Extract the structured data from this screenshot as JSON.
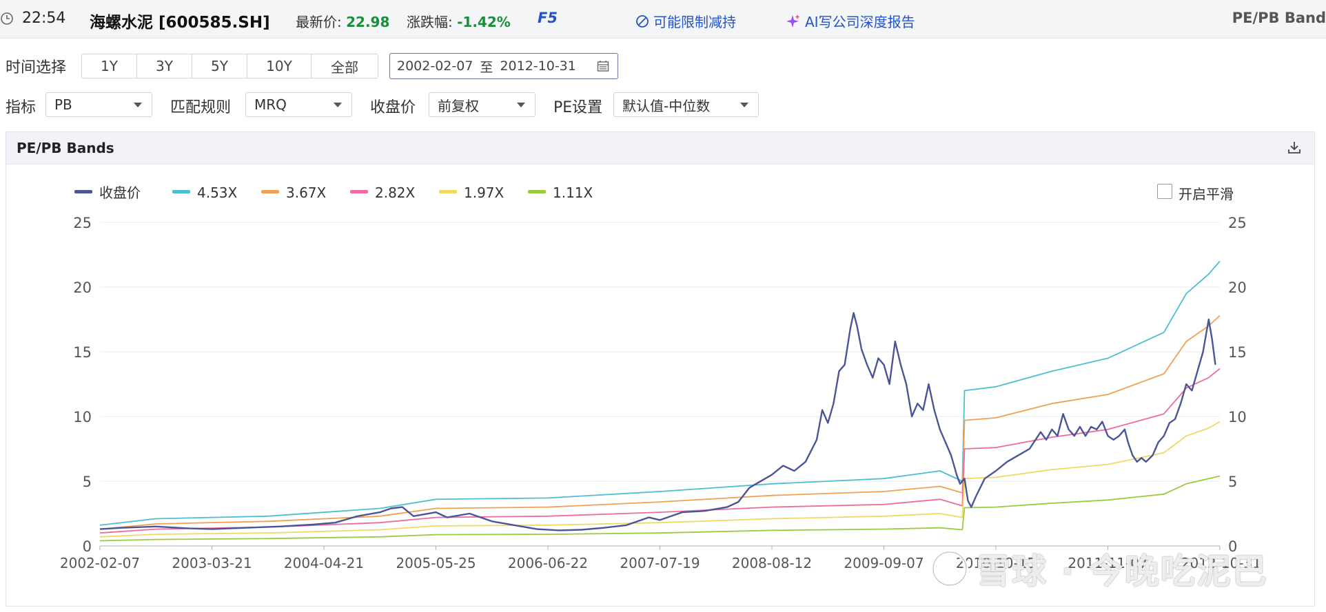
{
  "header": {
    "time": "22:54",
    "stock": "海螺水泥 [600585.SH]",
    "latest_price_label": "最新价:",
    "latest_price": "22.98",
    "change_label": "涨跌幅:",
    "change": "-1.42%",
    "f5": "F5",
    "link_reduce": "可能限制减持",
    "link_ai": "AI写公司深度报告",
    "right_title": "PE/PB Band"
  },
  "filters": {
    "time_label": "时间选择",
    "time_options": [
      "1Y",
      "3Y",
      "5Y",
      "10Y",
      "全部"
    ],
    "date_start": "2002-02-07",
    "date_sep": "至",
    "date_end": "2012-10-31",
    "indicator_label": "指标",
    "indicator_value": "PB",
    "match_label": "匹配规则",
    "match_value": "MRQ",
    "close_label": "收盘价",
    "close_value": "前复权",
    "pe_label": "PE设置",
    "pe_value": "默认值-中位数"
  },
  "panel": {
    "title": "PE/PB Bands",
    "smooth_label": "开启平滑"
  },
  "watermark": "雪球 · 今晚吃泥巴",
  "colors": {
    "close": "#4a5596",
    "b453": "#4bbfd1",
    "b367": "#f0a050",
    "b282": "#ee6aa0",
    "b197": "#f1d860",
    "b111": "#9acb3c",
    "accent": "#2452c8",
    "up_green": "#1a8f3a"
  },
  "chart_data": {
    "type": "line",
    "title": "",
    "x_ticks": [
      "2002-02-07",
      "2003-03-21",
      "2004-04-21",
      "2005-05-25",
      "2006-06-22",
      "2007-07-19",
      "2008-08-12",
      "2009-09-07",
      "2010-10-15",
      "2011-11-07",
      "2012-10-31"
    ],
    "ylim": [
      0,
      25
    ],
    "y_ticks": [
      0,
      5,
      10,
      15,
      20,
      25
    ],
    "legend_position": "top-left",
    "series": [
      {
        "name": "收盘价",
        "color": "#4a5596",
        "points": [
          [
            0,
            1.3
          ],
          [
            0.02,
            1.4
          ],
          [
            0.05,
            1.5
          ],
          [
            0.08,
            1.35
          ],
          [
            0.1,
            1.3
          ],
          [
            0.13,
            1.4
          ],
          [
            0.16,
            1.5
          ],
          [
            0.19,
            1.65
          ],
          [
            0.21,
            1.8
          ],
          [
            0.23,
            2.3
          ],
          [
            0.25,
            2.6
          ],
          [
            0.26,
            2.9
          ],
          [
            0.27,
            3.0
          ],
          [
            0.28,
            2.3
          ],
          [
            0.3,
            2.6
          ],
          [
            0.31,
            2.2
          ],
          [
            0.33,
            2.5
          ],
          [
            0.35,
            1.9
          ],
          [
            0.37,
            1.6
          ],
          [
            0.39,
            1.3
          ],
          [
            0.41,
            1.2
          ],
          [
            0.43,
            1.25
          ],
          [
            0.45,
            1.4
          ],
          [
            0.47,
            1.6
          ],
          [
            0.49,
            2.2
          ],
          [
            0.5,
            2.0
          ],
          [
            0.52,
            2.6
          ],
          [
            0.54,
            2.7
          ],
          [
            0.56,
            3.0
          ],
          [
            0.57,
            3.4
          ],
          [
            0.58,
            4.5
          ],
          [
            0.6,
            5.5
          ],
          [
            0.61,
            6.2
          ],
          [
            0.62,
            5.8
          ],
          [
            0.63,
            6.5
          ],
          [
            0.64,
            8.2
          ],
          [
            0.645,
            10.5
          ],
          [
            0.65,
            9.5
          ],
          [
            0.655,
            11.0
          ],
          [
            0.66,
            13.5
          ],
          [
            0.665,
            14.0
          ],
          [
            0.67,
            16.8
          ],
          [
            0.673,
            18.0
          ],
          [
            0.676,
            17.0
          ],
          [
            0.68,
            15.2
          ],
          [
            0.685,
            14.0
          ],
          [
            0.69,
            13.0
          ],
          [
            0.695,
            14.5
          ],
          [
            0.7,
            14.0
          ],
          [
            0.705,
            12.5
          ],
          [
            0.71,
            15.8
          ],
          [
            0.715,
            14.0
          ],
          [
            0.72,
            12.5
          ],
          [
            0.725,
            10.0
          ],
          [
            0.73,
            11.0
          ],
          [
            0.735,
            10.5
          ],
          [
            0.74,
            12.5
          ],
          [
            0.745,
            10.5
          ],
          [
            0.75,
            9.0
          ],
          [
            0.755,
            8.0
          ],
          [
            0.76,
            7.0
          ],
          [
            0.765,
            5.5
          ],
          [
            0.768,
            4.8
          ],
          [
            0.772,
            5.2
          ],
          [
            0.775,
            3.5
          ],
          [
            0.778,
            3.0
          ],
          [
            0.782,
            3.8
          ],
          [
            0.786,
            4.5
          ],
          [
            0.79,
            5.2
          ],
          [
            0.8,
            5.8
          ],
          [
            0.81,
            6.5
          ],
          [
            0.82,
            7.0
          ],
          [
            0.83,
            7.5
          ],
          [
            0.84,
            8.8
          ],
          [
            0.845,
            8.2
          ],
          [
            0.85,
            9.0
          ],
          [
            0.855,
            8.5
          ],
          [
            0.86,
            10.2
          ],
          [
            0.865,
            9.0
          ],
          [
            0.87,
            8.5
          ],
          [
            0.875,
            9.2
          ],
          [
            0.88,
            8.5
          ],
          [
            0.885,
            9.2
          ],
          [
            0.89,
            9.0
          ],
          [
            0.895,
            9.6
          ],
          [
            0.9,
            8.5
          ],
          [
            0.905,
            8.2
          ],
          [
            0.91,
            8.5
          ],
          [
            0.915,
            9.0
          ],
          [
            0.918,
            8.0
          ],
          [
            0.922,
            7.0
          ],
          [
            0.926,
            6.5
          ],
          [
            0.93,
            6.8
          ],
          [
            0.934,
            6.5
          ],
          [
            0.94,
            7.0
          ],
          [
            0.945,
            8.0
          ],
          [
            0.95,
            8.5
          ],
          [
            0.955,
            9.5
          ],
          [
            0.96,
            9.8
          ],
          [
            0.965,
            11.0
          ],
          [
            0.97,
            12.5
          ],
          [
            0.975,
            12.0
          ],
          [
            0.98,
            13.5
          ],
          [
            0.985,
            15.0
          ],
          [
            0.988,
            16.5
          ],
          [
            0.99,
            17.5
          ],
          [
            0.993,
            16.0
          ],
          [
            0.996,
            14.0
          ]
        ]
      },
      {
        "name": "4.53X",
        "color": "#4bbfd1",
        "points": [
          [
            0,
            1.6
          ],
          [
            0.05,
            2.1
          ],
          [
            0.15,
            2.3
          ],
          [
            0.25,
            2.9
          ],
          [
            0.3,
            3.6
          ],
          [
            0.4,
            3.7
          ],
          [
            0.5,
            4.2
          ],
          [
            0.6,
            4.8
          ],
          [
            0.7,
            5.2
          ],
          [
            0.75,
            5.8
          ],
          [
            0.77,
            5.0
          ],
          [
            0.772,
            12.0
          ],
          [
            0.8,
            12.3
          ],
          [
            0.85,
            13.5
          ],
          [
            0.9,
            14.5
          ],
          [
            0.95,
            16.5
          ],
          [
            0.97,
            19.5
          ],
          [
            0.99,
            21.0
          ],
          [
            1.0,
            22.0
          ]
        ]
      },
      {
        "name": "3.67X",
        "color": "#f0a050",
        "points": [
          [
            0,
            1.3
          ],
          [
            0.05,
            1.7
          ],
          [
            0.15,
            1.9
          ],
          [
            0.25,
            2.3
          ],
          [
            0.3,
            2.9
          ],
          [
            0.4,
            3.0
          ],
          [
            0.5,
            3.4
          ],
          [
            0.6,
            3.9
          ],
          [
            0.7,
            4.2
          ],
          [
            0.75,
            4.6
          ],
          [
            0.77,
            4.1
          ],
          [
            0.772,
            9.7
          ],
          [
            0.8,
            9.9
          ],
          [
            0.85,
            11.0
          ],
          [
            0.9,
            11.7
          ],
          [
            0.95,
            13.3
          ],
          [
            0.97,
            15.8
          ],
          [
            0.99,
            17.0
          ],
          [
            1.0,
            17.8
          ]
        ]
      },
      {
        "name": "2.82X",
        "color": "#ee6aa0",
        "points": [
          [
            0,
            1.0
          ],
          [
            0.05,
            1.3
          ],
          [
            0.15,
            1.45
          ],
          [
            0.25,
            1.8
          ],
          [
            0.3,
            2.2
          ],
          [
            0.4,
            2.3
          ],
          [
            0.5,
            2.6
          ],
          [
            0.6,
            3.0
          ],
          [
            0.7,
            3.2
          ],
          [
            0.75,
            3.6
          ],
          [
            0.77,
            3.1
          ],
          [
            0.772,
            7.5
          ],
          [
            0.8,
            7.6
          ],
          [
            0.85,
            8.4
          ],
          [
            0.9,
            9.0
          ],
          [
            0.95,
            10.2
          ],
          [
            0.97,
            12.2
          ],
          [
            0.99,
            13.0
          ],
          [
            1.0,
            13.7
          ]
        ]
      },
      {
        "name": "1.97X",
        "color": "#f1d860",
        "points": [
          [
            0,
            0.7
          ],
          [
            0.05,
            0.9
          ],
          [
            0.15,
            1.0
          ],
          [
            0.25,
            1.25
          ],
          [
            0.3,
            1.55
          ],
          [
            0.4,
            1.6
          ],
          [
            0.5,
            1.8
          ],
          [
            0.6,
            2.1
          ],
          [
            0.7,
            2.3
          ],
          [
            0.75,
            2.5
          ],
          [
            0.77,
            2.2
          ],
          [
            0.772,
            5.2
          ],
          [
            0.8,
            5.3
          ],
          [
            0.85,
            5.9
          ],
          [
            0.9,
            6.3
          ],
          [
            0.95,
            7.2
          ],
          [
            0.97,
            8.5
          ],
          [
            0.99,
            9.1
          ],
          [
            1.0,
            9.6
          ]
        ]
      },
      {
        "name": "1.11X",
        "color": "#9acb3c",
        "points": [
          [
            0,
            0.4
          ],
          [
            0.05,
            0.5
          ],
          [
            0.15,
            0.57
          ],
          [
            0.25,
            0.7
          ],
          [
            0.3,
            0.87
          ],
          [
            0.4,
            0.9
          ],
          [
            0.5,
            1.0
          ],
          [
            0.6,
            1.2
          ],
          [
            0.7,
            1.3
          ],
          [
            0.75,
            1.4
          ],
          [
            0.77,
            1.25
          ],
          [
            0.772,
            2.95
          ],
          [
            0.8,
            3.0
          ],
          [
            0.85,
            3.3
          ],
          [
            0.9,
            3.55
          ],
          [
            0.95,
            4.0
          ],
          [
            0.97,
            4.8
          ],
          [
            0.99,
            5.2
          ],
          [
            1.0,
            5.4
          ]
        ]
      }
    ]
  }
}
